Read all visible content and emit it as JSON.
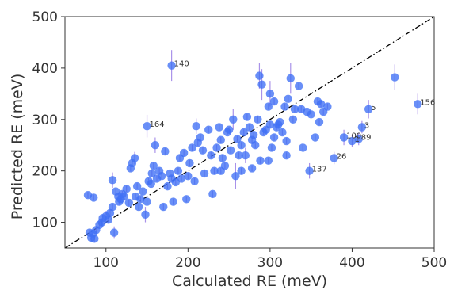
{
  "chart_data": {
    "type": "scatter",
    "xlabel": "Calculated RE (meV)",
    "ylabel": "Predicted RE (meV)",
    "xlim": [
      50,
      500
    ],
    "ylim": [
      50,
      500
    ],
    "x_ticks": [
      "100",
      "200",
      "300",
      "400",
      "500"
    ],
    "y_ticks": [
      "100",
      "200",
      "300",
      "400",
      "500"
    ],
    "grid": false,
    "marker_color": "#3f6ff5",
    "errorbar_color": "#9b7fe6",
    "diagonal": {
      "style": "dash-dot",
      "from": [
        50,
        50
      ],
      "to": [
        500,
        500
      ],
      "color": "#000000"
    },
    "points": [
      {
        "x": 180,
        "y": 405,
        "err": 30
      },
      {
        "x": 452,
        "y": 382,
        "err": 25
      },
      {
        "x": 480,
        "y": 330,
        "err": 20
      },
      {
        "x": 420,
        "y": 320,
        "err": 18
      },
      {
        "x": 150,
        "y": 287,
        "err": 22
      },
      {
        "x": 412,
        "y": 285,
        "err": 12
      },
      {
        "x": 408,
        "y": 262,
        "err": 12
      },
      {
        "x": 400,
        "y": 258,
        "err": 12
      },
      {
        "x": 390,
        "y": 265,
        "err": 15
      },
      {
        "x": 378,
        "y": 225,
        "err": 12
      },
      {
        "x": 348,
        "y": 200,
        "err": 15
      },
      {
        "x": 78,
        "y": 153
      },
      {
        "x": 85,
        "y": 148
      },
      {
        "x": 80,
        "y": 80
      },
      {
        "x": 84,
        "y": 78
      },
      {
        "x": 88,
        "y": 85
      },
      {
        "x": 82,
        "y": 70
      },
      {
        "x": 86,
        "y": 68
      },
      {
        "x": 92,
        "y": 95
      },
      {
        "x": 95,
        "y": 100
      },
      {
        "x": 96,
        "y": 108
      },
      {
        "x": 100,
        "y": 112,
        "err": 10
      },
      {
        "x": 103,
        "y": 105
      },
      {
        "x": 105,
        "y": 118
      },
      {
        "x": 108,
        "y": 130
      },
      {
        "x": 110,
        "y": 80,
        "err": 12
      },
      {
        "x": 108,
        "y": 182,
        "err": 15
      },
      {
        "x": 112,
        "y": 160
      },
      {
        "x": 115,
        "y": 150
      },
      {
        "x": 116,
        "y": 140
      },
      {
        "x": 118,
        "y": 145
      },
      {
        "x": 120,
        "y": 155
      },
      {
        "x": 122,
        "y": 150
      },
      {
        "x": 125,
        "y": 165
      },
      {
        "x": 128,
        "y": 138
      },
      {
        "x": 130,
        "y": 205
      },
      {
        "x": 132,
        "y": 215
      },
      {
        "x": 135,
        "y": 225,
        "err": 12
      },
      {
        "x": 136,
        "y": 150
      },
      {
        "x": 138,
        "y": 170
      },
      {
        "x": 140,
        "y": 130
      },
      {
        "x": 142,
        "y": 145
      },
      {
        "x": 145,
        "y": 160
      },
      {
        "x": 148,
        "y": 115,
        "err": 15
      },
      {
        "x": 150,
        "y": 140
      },
      {
        "x": 152,
        "y": 180
      },
      {
        "x": 155,
        "y": 175
      },
      {
        "x": 156,
        "y": 195
      },
      {
        "x": 158,
        "y": 210
      },
      {
        "x": 160,
        "y": 250,
        "err": 15
      },
      {
        "x": 162,
        "y": 185
      },
      {
        "x": 165,
        "y": 200
      },
      {
        "x": 168,
        "y": 190
      },
      {
        "x": 170,
        "y": 130
      },
      {
        "x": 172,
        "y": 238
      },
      {
        "x": 175,
        "y": 170
      },
      {
        "x": 178,
        "y": 195
      },
      {
        "x": 180,
        "y": 185
      },
      {
        "x": 182,
        "y": 140
      },
      {
        "x": 185,
        "y": 178
      },
      {
        "x": 188,
        "y": 200
      },
      {
        "x": 190,
        "y": 225
      },
      {
        "x": 192,
        "y": 185
      },
      {
        "x": 195,
        "y": 235
      },
      {
        "x": 198,
        "y": 145
      },
      {
        "x": 200,
        "y": 190
      },
      {
        "x": 202,
        "y": 215
      },
      {
        "x": 205,
        "y": 245
      },
      {
        "x": 208,
        "y": 180
      },
      {
        "x": 210,
        "y": 287,
        "err": 15
      },
      {
        "x": 212,
        "y": 255
      },
      {
        "x": 215,
        "y": 265
      },
      {
        "x": 218,
        "y": 240
      },
      {
        "x": 220,
        "y": 195
      },
      {
        "x": 225,
        "y": 280
      },
      {
        "x": 228,
        "y": 230
      },
      {
        "x": 230,
        "y": 155
      },
      {
        "x": 232,
        "y": 200
      },
      {
        "x": 235,
        "y": 245
      },
      {
        "x": 238,
        "y": 285
      },
      {
        "x": 240,
        "y": 260
      },
      {
        "x": 242,
        "y": 225
      },
      {
        "x": 245,
        "y": 210
      },
      {
        "x": 248,
        "y": 275
      },
      {
        "x": 250,
        "y": 280
      },
      {
        "x": 252,
        "y": 240
      },
      {
        "x": 255,
        "y": 300,
        "err": 20
      },
      {
        "x": 258,
        "y": 190,
        "err": 25
      },
      {
        "x": 260,
        "y": 262
      },
      {
        "x": 262,
        "y": 230
      },
      {
        "x": 265,
        "y": 250
      },
      {
        "x": 268,
        "y": 275
      },
      {
        "x": 270,
        "y": 230,
        "err": 15
      },
      {
        "x": 272,
        "y": 305
      },
      {
        "x": 275,
        "y": 285
      },
      {
        "x": 278,
        "y": 260
      },
      {
        "x": 280,
        "y": 270
      },
      {
        "x": 282,
        "y": 250
      },
      {
        "x": 285,
        "y": 300
      },
      {
        "x": 287,
        "y": 385,
        "err": 25
      },
      {
        "x": 290,
        "y": 368,
        "err": 30
      },
      {
        "x": 292,
        "y": 275
      },
      {
        "x": 295,
        "y": 280
      },
      {
        "x": 298,
        "y": 325
      },
      {
        "x": 300,
        "y": 350,
        "err": 25
      },
      {
        "x": 300,
        "y": 290
      },
      {
        "x": 302,
        "y": 245
      },
      {
        "x": 305,
        "y": 335
      },
      {
        "x": 305,
        "y": 265
      },
      {
        "x": 308,
        "y": 285
      },
      {
        "x": 310,
        "y": 290
      },
      {
        "x": 312,
        "y": 295
      },
      {
        "x": 315,
        "y": 275
      },
      {
        "x": 318,
        "y": 325
      },
      {
        "x": 320,
        "y": 230
      },
      {
        "x": 322,
        "y": 340
      },
      {
        "x": 325,
        "y": 380,
        "err": 30
      },
      {
        "x": 328,
        "y": 300
      },
      {
        "x": 330,
        "y": 320
      },
      {
        "x": 335,
        "y": 365
      },
      {
        "x": 338,
        "y": 320
      },
      {
        "x": 340,
        "y": 245
      },
      {
        "x": 345,
        "y": 315
      },
      {
        "x": 350,
        "y": 310
      },
      {
        "x": 355,
        "y": 265
      },
      {
        "x": 358,
        "y": 335
      },
      {
        "x": 360,
        "y": 295
      },
      {
        "x": 362,
        "y": 330
      },
      {
        "x": 365,
        "y": 315
      },
      {
        "x": 370,
        "y": 325
      },
      {
        "x": 298,
        "y": 220
      },
      {
        "x": 288,
        "y": 220
      },
      {
        "x": 278,
        "y": 205
      },
      {
        "x": 265,
        "y": 200
      },
      {
        "x": 320,
        "y": 258
      },
      {
        "x": 240,
        "y": 200
      }
    ],
    "annotations": [
      {
        "text": "140",
        "x": 180,
        "y": 405
      },
      {
        "text": "156",
        "x": 480,
        "y": 330
      },
      {
        "text": "5",
        "x": 420,
        "y": 320
      },
      {
        "text": "164",
        "x": 150,
        "y": 287
      },
      {
        "text": "3",
        "x": 412,
        "y": 285
      },
      {
        "text": "100",
        "x": 390,
        "y": 265
      },
      {
        "text": "1",
        "x": 400,
        "y": 258
      },
      {
        "text": "89",
        "x": 408,
        "y": 262
      },
      {
        "text": "26",
        "x": 378,
        "y": 225
      },
      {
        "text": "137",
        "x": 348,
        "y": 200
      }
    ]
  }
}
